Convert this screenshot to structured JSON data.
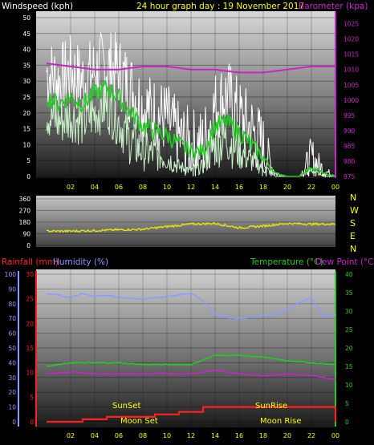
{
  "header": {
    "left": "Windspeed (kph)",
    "center": "24 hour graph day : 19 November 2017",
    "right": "Barometer (kpa)"
  },
  "colors": {
    "bg": "#000000",
    "wind_gust": "#ffffff",
    "wind_avg": "#c8f0c8",
    "wind_dir": "#e6e600",
    "barometer": "#cc22cc",
    "green_line": "#22cc22",
    "rainfall": "#ff2020",
    "humidity": "#8a9cff",
    "temperature": "#22cc22",
    "dew_point": "#cc22cc",
    "axis_text": "#ffff00",
    "compass": "#ffff00"
  },
  "panel_headers": {
    "rainfall": "Rainfall (mm)",
    "humidity": "Humidity (%)",
    "temperature": "Temperature (°C)",
    "dew_point": "Dew Point (°C)"
  },
  "compass": [
    "N",
    "W",
    "S",
    "E",
    "N"
  ],
  "annotations": {
    "sunset": "SunSet",
    "sunrise": "SunRise",
    "moonset": "Moon Set",
    "moonrise": "Moon Rise"
  },
  "chart_data": [
    {
      "id": "wind",
      "type": "line",
      "x_ticks": [
        "02",
        "04",
        "06",
        "08",
        "10",
        "12",
        "14",
        "16",
        "18",
        "20",
        "22",
        "00"
      ],
      "y_ticks": [
        0,
        5,
        10,
        15,
        20,
        25,
        30,
        35,
        40,
        45,
        50
      ],
      "y2_ticks": [
        975,
        980,
        985,
        990,
        995,
        1000,
        1005,
        1010,
        1015,
        1020,
        1025
      ],
      "ylim": [
        0,
        50
      ],
      "y2lim": [
        975,
        1027
      ],
      "x_hours": [
        0,
        24
      ],
      "series": [
        {
          "role": "gust",
          "x": [
            0,
            1,
            2,
            3,
            4,
            5,
            6,
            7,
            8,
            9,
            10,
            11,
            12,
            13,
            14,
            15,
            16,
            17,
            18,
            19,
            20,
            21,
            22,
            23,
            24
          ],
          "values": [
            33,
            30,
            33,
            30,
            33,
            35,
            33,
            28,
            22,
            20,
            18,
            12,
            10,
            10,
            22,
            26,
            19,
            15,
            9,
            1,
            0,
            0,
            6,
            2,
            0
          ]
        },
        {
          "role": "avg",
          "x": [
            0,
            1,
            2,
            3,
            4,
            5,
            6,
            7,
            8,
            9,
            10,
            11,
            12,
            13,
            14,
            15,
            16,
            17,
            18,
            19,
            20,
            21,
            22,
            23,
            24
          ],
          "values": [
            20,
            17,
            19,
            17,
            20,
            22,
            17,
            11,
            8,
            7,
            6,
            3,
            2,
            3,
            10,
            12,
            8,
            5,
            3,
            0,
            0,
            0,
            2,
            0,
            0
          ]
        },
        {
          "role": "green",
          "x": [
            0,
            1,
            2,
            3,
            4,
            5,
            6,
            7,
            8,
            9,
            10,
            11,
            12,
            13,
            14,
            15,
            16,
            17,
            18,
            19,
            20,
            21,
            22,
            23,
            24
          ],
          "values": [
            25,
            23,
            25,
            23,
            26,
            28,
            25,
            20,
            16,
            14,
            13,
            10,
            8,
            8,
            16,
            17,
            14,
            10,
            6,
            1,
            0,
            0,
            3,
            1,
            0
          ]
        },
        {
          "role": "barometer",
          "x": [
            0,
            2,
            4,
            6,
            8,
            10,
            12,
            14,
            16,
            18,
            20,
            22,
            24
          ],
          "values": [
            1012,
            1011,
            1010,
            1010,
            1011,
            1011,
            1010,
            1010,
            1009,
            1009,
            1010,
            1011,
            1011
          ]
        }
      ]
    },
    {
      "id": "wind_direction",
      "type": "line",
      "y_ticks": [
        0,
        90,
        180,
        270,
        360
      ],
      "ylim": [
        0,
        360
      ],
      "series": [
        {
          "role": "direction",
          "x": [
            0,
            2,
            4,
            6,
            8,
            10,
            12,
            14,
            16,
            18,
            20,
            22,
            24
          ],
          "values": [
            110,
            110,
            115,
            120,
            125,
            145,
            165,
            170,
            135,
            150,
            170,
            165,
            165
          ]
        }
      ]
    },
    {
      "id": "rain_humidity_temp",
      "type": "line",
      "x_ticks": [
        "02",
        "04",
        "06",
        "08",
        "10",
        "12",
        "14",
        "16",
        "18",
        "20",
        "22",
        "00"
      ],
      "left_rain_ticks": [
        0,
        5,
        10,
        15,
        20,
        25,
        30
      ],
      "left_hum_ticks": [
        0,
        10,
        20,
        30,
        40,
        50,
        60,
        70,
        80,
        90,
        100
      ],
      "right_temp_ticks": [
        0,
        5,
        10,
        15,
        20,
        25,
        30,
        35,
        40
      ],
      "series": [
        {
          "role": "humidity",
          "x": [
            0,
            1,
            2,
            3,
            4,
            5,
            6,
            7,
            8,
            9,
            10,
            11,
            12,
            13,
            14,
            15,
            16,
            17,
            18,
            19,
            20,
            21,
            22,
            23,
            24
          ],
          "values": [
            87,
            86,
            84,
            87,
            85,
            86,
            84,
            84,
            83,
            84,
            85,
            86,
            87,
            82,
            73,
            71,
            70,
            71,
            72,
            73,
            76,
            81,
            84,
            72,
            72
          ]
        },
        {
          "role": "temperature",
          "x": [
            0,
            2,
            4,
            6,
            8,
            10,
            12,
            14,
            16,
            18,
            20,
            22,
            24
          ],
          "values": [
            15,
            16,
            16,
            16,
            15.5,
            15.5,
            15.5,
            18,
            18,
            17.5,
            16.5,
            16,
            15.5
          ]
        },
        {
          "role": "dew_point",
          "x": [
            0,
            2,
            4,
            6,
            8,
            10,
            12,
            14,
            16,
            18,
            20,
            22,
            24
          ],
          "values": [
            13,
            13.5,
            13,
            13,
            13,
            13,
            13,
            14,
            13,
            12.5,
            13,
            12.5,
            11.5
          ]
        },
        {
          "role": "rainfall",
          "x": [
            0,
            3,
            4,
            5,
            6,
            7,
            8,
            9,
            10,
            11,
            12,
            13,
            14,
            16,
            18,
            20,
            22,
            23,
            24
          ],
          "values": [
            0,
            0.5,
            0.5,
            1,
            1,
            1,
            1,
            1.5,
            1.5,
            2,
            2,
            3,
            3,
            3,
            3,
            3,
            3,
            3,
            3
          ]
        }
      ]
    }
  ]
}
